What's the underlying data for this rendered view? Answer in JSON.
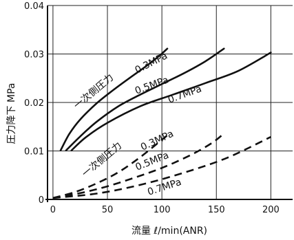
{
  "chart_data": {
    "type": "line",
    "title": "",
    "xlabel": "流量 ℓ/min(ANR)",
    "ylabel": "圧力降下 MPa",
    "xlim": [
      -5,
      220
    ],
    "ylim": [
      0,
      0.04
    ],
    "grid": true,
    "x_ticks": [
      0,
      50,
      100,
      150,
      200
    ],
    "x_tick_labels": [
      "0",
      "50",
      "100",
      "150",
      "200"
    ],
    "y_ticks": [
      0,
      0.01,
      0.02,
      0.03,
      0.04
    ],
    "y_tick_labels": [
      "0",
      "0.01",
      "0.02",
      "0.03",
      "0.04"
    ],
    "series": [
      {
        "name": "0.3MPa",
        "group": "一次側圧力",
        "style": "solid",
        "points": [
          [
            7,
            0.0101
          ],
          [
            15,
            0.0135
          ],
          [
            25,
            0.0165
          ],
          [
            40,
            0.0198
          ],
          [
            55,
            0.0225
          ],
          [
            70,
            0.025
          ],
          [
            85,
            0.0274
          ],
          [
            97,
            0.0295
          ],
          [
            105,
            0.0311
          ]
        ]
      },
      {
        "name": "0.5MPa",
        "group": "一次側圧力",
        "style": "solid",
        "points": [
          [
            12,
            0.0101
          ],
          [
            25,
            0.013
          ],
          [
            40,
            0.016
          ],
          [
            60,
            0.0192
          ],
          [
            80,
            0.0216
          ],
          [
            100,
            0.0238
          ],
          [
            120,
            0.026
          ],
          [
            140,
            0.0285
          ],
          [
            157,
            0.0311
          ]
        ]
      },
      {
        "name": "0.7MPa",
        "group": "一次側圧力",
        "style": "solid",
        "points": [
          [
            17,
            0.0101
          ],
          [
            30,
            0.0128
          ],
          [
            50,
            0.0158
          ],
          [
            80,
            0.0192
          ],
          [
            110,
            0.0216
          ],
          [
            140,
            0.024
          ],
          [
            170,
            0.0265
          ],
          [
            200,
            0.0303
          ]
        ]
      },
      {
        "name": "0.3MPa",
        "group": "一次側圧力",
        "style": "dashed",
        "points": [
          [
            0,
            0.0003
          ],
          [
            20,
            0.0015
          ],
          [
            40,
            0.0033
          ],
          [
            60,
            0.0056
          ],
          [
            80,
            0.0087
          ],
          [
            100,
            0.0123
          ],
          [
            107,
            0.0136
          ]
        ]
      },
      {
        "name": "0.5MPa",
        "group": "一次側圧力",
        "style": "dashed",
        "points": [
          [
            0,
            0.0003
          ],
          [
            25,
            0.0013
          ],
          [
            50,
            0.0027
          ],
          [
            75,
            0.0045
          ],
          [
            100,
            0.0065
          ],
          [
            125,
            0.009
          ],
          [
            145,
            0.0115
          ],
          [
            157,
            0.0136
          ]
        ]
      },
      {
        "name": "0.7MPa",
        "group": "一次側圧力",
        "style": "dashed",
        "points": [
          [
            0,
            0.0003
          ],
          [
            40,
            0.0012
          ],
          [
            80,
            0.003
          ],
          [
            120,
            0.0055
          ],
          [
            160,
            0.0086
          ],
          [
            200,
            0.0129
          ]
        ]
      }
    ],
    "annotations": [
      {
        "text": "一次側圧力 0.3MPa",
        "group": "solid"
      },
      {
        "text": "0.5MPa",
        "series": "solid-0.5"
      },
      {
        "text": "0.7MPa",
        "series": "solid-0.7"
      },
      {
        "text": "一次側圧力 0.3MPa",
        "group": "dashed"
      },
      {
        "text": "0.5MPa",
        "series": "dashed-0.5"
      },
      {
        "text": "0.7MPa",
        "series": "dashed-0.7"
      }
    ]
  },
  "labels": {
    "solid_group": "一次側圧力",
    "solid_03": "0.3MPa",
    "solid_05": "0.5MPa",
    "solid_07": "0.7MPa",
    "dashed_group": "一次側圧力",
    "dashed_03": "0.3MPa",
    "dashed_05": "0.5MPa",
    "dashed_07": "0.7MPa"
  }
}
